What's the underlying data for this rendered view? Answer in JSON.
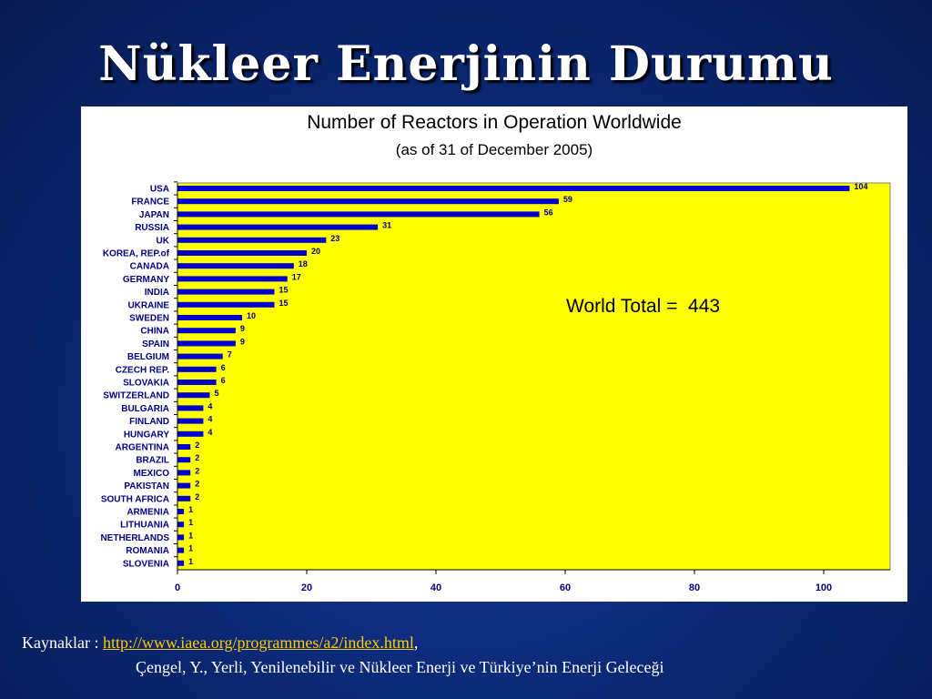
{
  "slide": {
    "title": "Nükleer  Enerjinin  Durumu",
    "background_color": "#0c2a78",
    "title_color": "#ffffff"
  },
  "chart_data": {
    "type": "bar",
    "orientation": "horizontal",
    "title": "Number of Reactors in Operation Worldwide",
    "subtitle": "(as of 31 of December 2005)",
    "categories": [
      "USA",
      "FRANCE",
      "JAPAN",
      "RUSSIA",
      "UK",
      "KOREA, REP.of",
      "CANADA",
      "GERMANY",
      "INDIA",
      "UKRAINE",
      "SWEDEN",
      "CHINA",
      "SPAIN",
      "BELGIUM",
      "CZECH REP.",
      "SLOVAKIA",
      "SWITZERLAND",
      "BULGARIA",
      "FINLAND",
      "HUNGARY",
      "ARGENTINA",
      "BRAZIL",
      "MEXICO",
      "PAKISTAN",
      "SOUTH AFRICA",
      "ARMENIA",
      "LITHUANIA",
      "NETHERLANDS",
      "ROMANIA",
      "SLOVENIA"
    ],
    "values": [
      104,
      59,
      56,
      31,
      23,
      20,
      18,
      17,
      15,
      15,
      10,
      9,
      9,
      7,
      6,
      6,
      5,
      4,
      4,
      4,
      2,
      2,
      2,
      2,
      2,
      1,
      1,
      1,
      1,
      1
    ],
    "x_ticks": [
      0,
      20,
      40,
      60,
      80,
      100
    ],
    "xlim": [
      0,
      110
    ],
    "annotation": "World Total =  443",
    "bar_color": "#0000cc",
    "plot_background": "#ffff00",
    "label_color": "#000080",
    "grid": false
  },
  "sources": {
    "label": "Kaynaklar : ",
    "link_text": "http://www.iaea.org/programmes/a2/index.html",
    "separator": ",",
    "reference": "Çengel, Y., Yerli, Yenilenebilir ve Nükleer Enerji ve Türkiye’nin Enerji Geleceği",
    "link_color": "#ffcc00"
  }
}
